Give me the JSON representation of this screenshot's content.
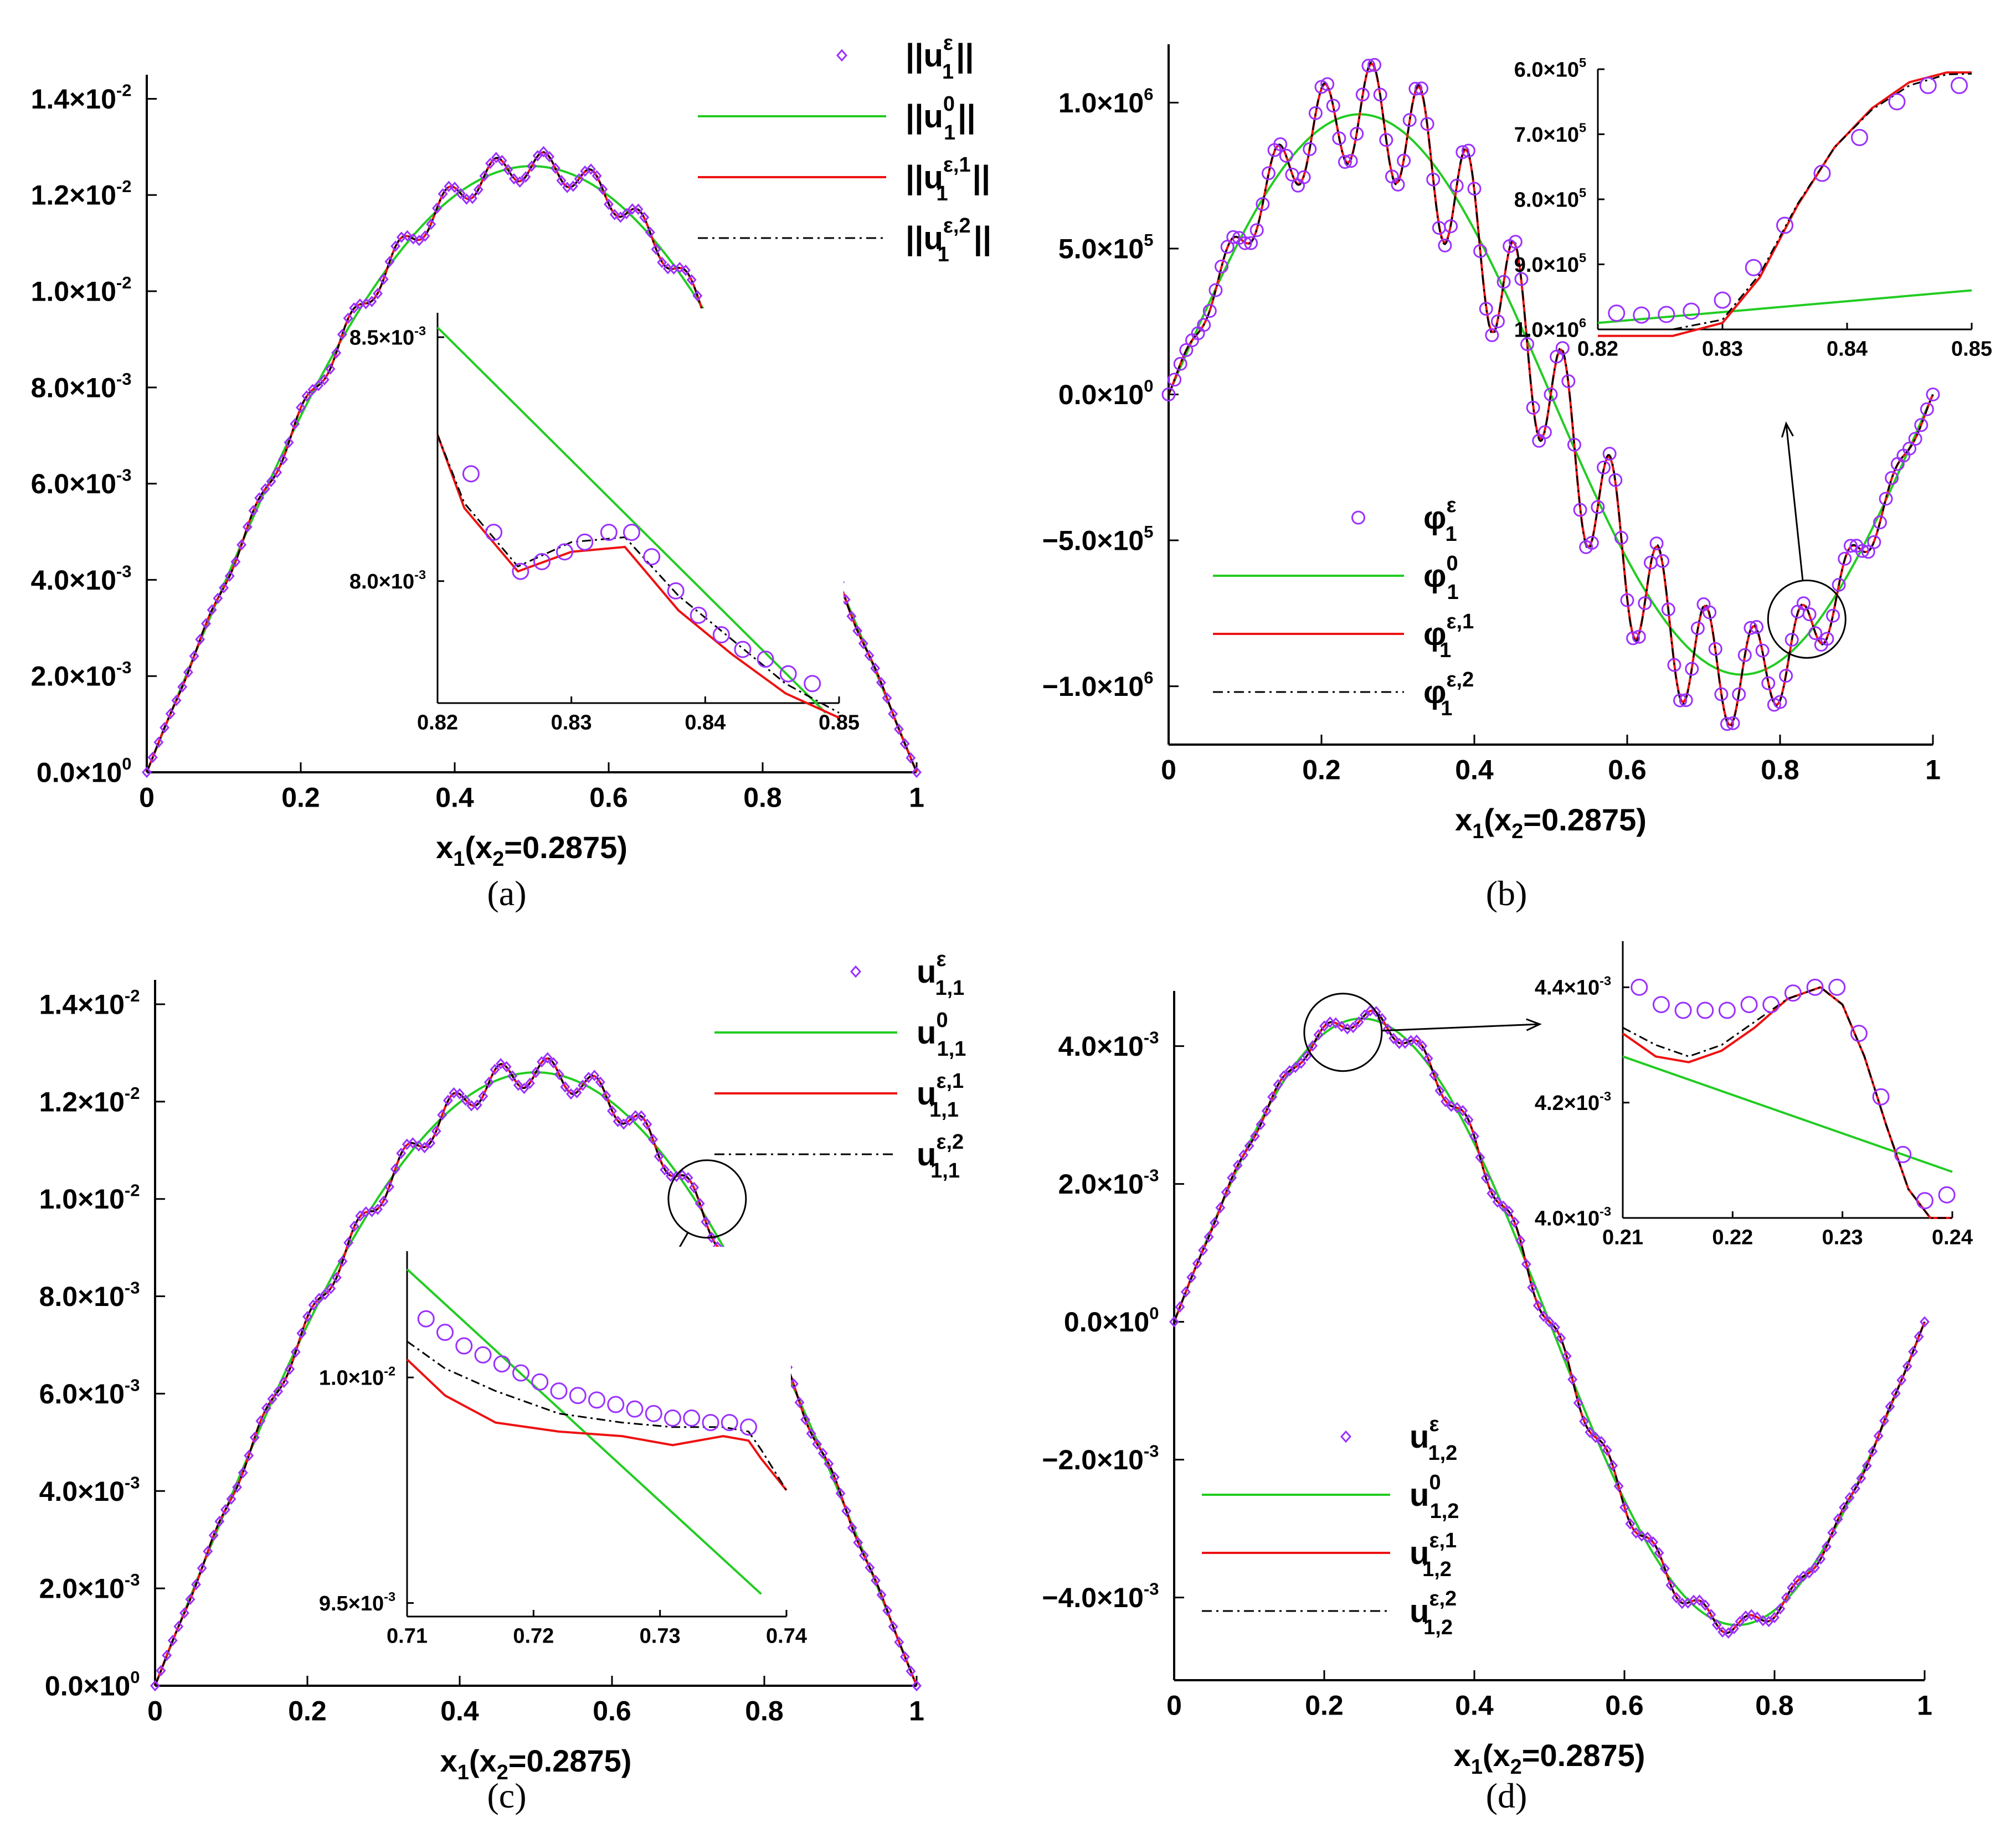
{
  "figure": {
    "captions": [
      "(a)",
      "(b)",
      "(c)",
      "(d)"
    ]
  },
  "colors": {
    "series_eps": "#9b30ff",
    "series_0": "#22cc22",
    "series_1": "#ee1111",
    "series_2": "#000000",
    "axis": "#000000"
  },
  "chart_data": [
    {
      "id": "a",
      "type": "line",
      "caption": "(a)",
      "xlabel": "x1(x2=0.2875)",
      "xlim": [
        0,
        1
      ],
      "ylim": [
        0,
        0.0145
      ],
      "xticks": [
        0,
        0.2,
        0.4,
        0.6,
        0.8,
        1
      ],
      "xtick_labels": [
        "0",
        "0.2",
        "0.4",
        "0.6",
        "0.8",
        "1"
      ],
      "yticks": [
        0,
        0.002,
        0.004,
        0.006,
        0.008,
        0.01,
        0.012,
        0.014
      ],
      "ytick_labels": [
        {
          "m": "0.0×10",
          "e": "0"
        },
        {
          "m": "2.0×10",
          "e": "-3"
        },
        {
          "m": "4.0×10",
          "e": "-3"
        },
        {
          "m": "6.0×10",
          "e": "-3"
        },
        {
          "m": "8.0×10",
          "e": "-3"
        },
        {
          "m": "1.0×10",
          "e": "-2"
        },
        {
          "m": "1.2×10",
          "e": "-2"
        },
        {
          "m": "1.4×10",
          "e": "-2"
        }
      ],
      "legend": [
        {
          "series": "eps",
          "base": "||u",
          "sub": "1",
          "sup": "ε",
          "tail": "||"
        },
        {
          "series": "zero",
          "base": "||u",
          "sub": "1",
          "sup": "0",
          "tail": "||"
        },
        {
          "series": "first",
          "base": "||u",
          "sub": "1",
          "sup": "ε,1",
          "tail": "||"
        },
        {
          "series": "second",
          "base": "||u",
          "sub": "1",
          "sup": "ε,2",
          "tail": "||"
        }
      ],
      "legend_position": "top-right",
      "model": {
        "kind": "sine",
        "amp": 0.0126,
        "osc_amp": 0.0003,
        "osc_freq": 16
      },
      "zoom_marker": {
        "x": 0.835,
        "y": 0.0083
      },
      "inset": {
        "xlim": [
          0.82,
          0.85
        ],
        "ylim": [
          0.00775,
          0.00855
        ],
        "xticks": [
          0.82,
          0.83,
          0.84,
          0.85
        ],
        "xtick_labels": [
          "0.82",
          "0.83",
          "0.84",
          "0.85"
        ],
        "yticks": [
          0.008,
          0.0085
        ],
        "ytick_labels": [
          {
            "m": "8.0×10",
            "e": "-3"
          },
          {
            "m": "8.5×10",
            "e": "-3"
          }
        ],
        "zero": {
          "x": [
            0.82,
            0.849
          ],
          "y": [
            0.00852,
            0.00773
          ]
        },
        "first": {
          "x": [
            0.82,
            0.822,
            0.826,
            0.83,
            0.834,
            0.838,
            0.842,
            0.846,
            0.85
          ],
          "y": [
            0.0083,
            0.00815,
            0.00802,
            0.00806,
            0.00807,
            0.00794,
            0.00785,
            0.00777,
            0.00772
          ]
        },
        "second": {
          "x": [
            0.82,
            0.822,
            0.826,
            0.83,
            0.834,
            0.838,
            0.842,
            0.846,
            0.85
          ],
          "y": [
            0.0083,
            0.00816,
            0.00803,
            0.00808,
            0.00809,
            0.00797,
            0.00788,
            0.00779,
            0.00773
          ]
        },
        "eps": {
          "x": [
            0.8225,
            0.8242,
            0.8262,
            0.8278,
            0.8295,
            0.831,
            0.8328,
            0.8345,
            0.836,
            0.8378,
            0.8395,
            0.8412,
            0.8428,
            0.8445,
            0.8462,
            0.848
          ],
          "y": [
            0.00822,
            0.0081,
            0.00802,
            0.00804,
            0.00806,
            0.00808,
            0.0081,
            0.0081,
            0.00805,
            0.00798,
            0.00793,
            0.00789,
            0.00786,
            0.00784,
            0.00781,
            0.00779
          ]
        }
      }
    },
    {
      "id": "b",
      "type": "line",
      "caption": "(b)",
      "xlabel": "x1(x2=0.2875)",
      "xlim": [
        0,
        1
      ],
      "ylim": [
        -1200000,
        1200000
      ],
      "xticks": [
        0,
        0.2,
        0.4,
        0.6,
        0.8,
        1
      ],
      "xtick_labels": [
        "0",
        "0.2",
        "0.4",
        "0.6",
        "0.8",
        "1"
      ],
      "yticks": [
        -1000000,
        -500000,
        0,
        500000,
        1000000
      ],
      "ytick_labels": [
        {
          "m": "−1.0×10",
          "e": "6"
        },
        {
          "m": "−5.0×10",
          "e": "5"
        },
        {
          "m": "0.0×10",
          "e": "0"
        },
        {
          "m": "5.0×10",
          "e": "5"
        },
        {
          "m": "1.0×10",
          "e": "6"
        }
      ],
      "legend": [
        {
          "series": "eps",
          "base": "φ",
          "sub": "1",
          "sup": "ε",
          "tail": ""
        },
        {
          "series": "zero",
          "base": "φ",
          "sub": "1",
          "sup": "0",
          "tail": ""
        },
        {
          "series": "first",
          "base": "φ",
          "sub": "1",
          "sup": "ε,1",
          "tail": ""
        },
        {
          "series": "second",
          "base": "φ",
          "sub": "1",
          "sup": "ε,2",
          "tail": ""
        }
      ],
      "legend_position": "bottom-left",
      "model": {
        "kind": "fullsine",
        "amp": 960000,
        "osc_amp": 200000,
        "osc_freq": 16
      },
      "zoom_marker": {
        "x": 0.835,
        "y": -770000
      },
      "inset": {
        "xlim": [
          0.82,
          0.85
        ],
        "ylim": [
          -1000000,
          -600000
        ],
        "xticks": [
          0.82,
          0.83,
          0.84,
          0.85
        ],
        "xtick_labels": [
          "0.82",
          "0.83",
          "0.84",
          "0.85"
        ],
        "yticks": [
          -1000000,
          -900000,
          -800000,
          -700000,
          -600000
        ],
        "ytick_labels": [
          {
            "m": "1.0×10",
            "e": "6"
          },
          {
            "m": "9.0×10",
            "e": "5"
          },
          {
            "m": "8.0×10",
            "e": "5"
          },
          {
            "m": "7.0×10",
            "e": "5"
          },
          {
            "m": "6.0×10",
            "e": "5"
          }
        ],
        "zero": {
          "x": [
            0.82,
            0.85
          ],
          "y": [
            -990000,
            -940000
          ]
        },
        "first": {
          "x": [
            0.82,
            0.826,
            0.83,
            0.833,
            0.836,
            0.839,
            0.842,
            0.845,
            0.848,
            0.85
          ],
          "y": [
            -1010000,
            -1010000,
            -990000,
            -920000,
            -810000,
            -720000,
            -660000,
            -620000,
            -605000,
            -605000
          ]
        },
        "second": {
          "x": [
            0.82,
            0.826,
            0.83,
            0.833,
            0.836,
            0.839,
            0.842,
            0.845,
            0.848,
            0.85
          ],
          "y": [
            -1000000,
            -1000000,
            -985000,
            -915000,
            -808000,
            -720000,
            -662000,
            -625000,
            -608000,
            -607000
          ]
        },
        "eps": {
          "x": [
            0.8215,
            0.8235,
            0.8255,
            0.8275,
            0.83,
            0.8325,
            0.835,
            0.838,
            0.841,
            0.844,
            0.8465,
            0.849
          ],
          "y": [
            -975000,
            -978000,
            -977000,
            -972000,
            -955000,
            -905000,
            -840000,
            -760000,
            -705000,
            -650000,
            -625000,
            -625000
          ]
        }
      }
    },
    {
      "id": "c",
      "type": "line",
      "caption": "(c)",
      "xlabel": "x1(x2=0.2875)",
      "xlim": [
        0,
        1
      ],
      "ylim": [
        0,
        0.0145
      ],
      "xticks": [
        0,
        0.2,
        0.4,
        0.6,
        0.8,
        1
      ],
      "xtick_labels": [
        "0",
        "0.2",
        "0.4",
        "0.6",
        "0.8",
        "1"
      ],
      "yticks": [
        0,
        0.002,
        0.004,
        0.006,
        0.008,
        0.01,
        0.012,
        0.014
      ],
      "ytick_labels": [
        {
          "m": "0.0×10",
          "e": "0"
        },
        {
          "m": "2.0×10",
          "e": "-3"
        },
        {
          "m": "4.0×10",
          "e": "-3"
        },
        {
          "m": "6.0×10",
          "e": "-3"
        },
        {
          "m": "8.0×10",
          "e": "-3"
        },
        {
          "m": "1.0×10",
          "e": "-2"
        },
        {
          "m": "1.2×10",
          "e": "-2"
        },
        {
          "m": "1.4×10",
          "e": "-2"
        }
      ],
      "legend": [
        {
          "series": "eps",
          "base": "u",
          "sub": "1,1",
          "sup": "ε",
          "tail": ""
        },
        {
          "series": "zero",
          "base": "u",
          "sub": "1,1",
          "sup": "0",
          "tail": ""
        },
        {
          "series": "first",
          "base": "u",
          "sub": "1,1",
          "sup": "ε,1",
          "tail": ""
        },
        {
          "series": "second",
          "base": "u",
          "sub": "1,1",
          "sup": "ε,2",
          "tail": ""
        }
      ],
      "legend_position": "top-right",
      "model": {
        "kind": "sine",
        "amp": 0.0126,
        "osc_amp": 0.0003,
        "osc_freq": 16
      },
      "zoom_marker": {
        "x": 0.725,
        "y": 0.01
      },
      "inset": {
        "xlim": [
          0.71,
          0.74
        ],
        "ylim": [
          0.00947,
          0.01028
        ],
        "xticks": [
          0.71,
          0.72,
          0.73,
          0.74
        ],
        "xtick_labels": [
          "0.71",
          "0.72",
          "0.73",
          "0.74"
        ],
        "yticks": [
          0.0095,
          0.01
        ],
        "ytick_labels": [
          {
            "m": "9.5×10",
            "e": "-3"
          },
          {
            "m": "1.0×10",
            "e": "-2"
          }
        ],
        "zero": {
          "x": [
            0.71,
            0.738
          ],
          "y": [
            0.01024,
            0.00952
          ]
        },
        "first": {
          "x": [
            0.71,
            0.713,
            0.717,
            0.722,
            0.727,
            0.731,
            0.735,
            0.737,
            0.738,
            0.74
          ],
          "y": [
            0.01004,
            0.00996,
            0.0099,
            0.00988,
            0.00987,
            0.00985,
            0.00987,
            0.00986,
            0.00982,
            0.00975
          ]
        },
        "second": {
          "x": [
            0.71,
            0.713,
            0.717,
            0.722,
            0.727,
            0.731,
            0.735,
            0.737,
            0.738,
            0.74
          ],
          "y": [
            0.01008,
            0.01002,
            0.00997,
            0.00992,
            0.0099,
            0.00989,
            0.00989,
            0.00988,
            0.00984,
            0.00975
          ]
        },
        "eps": {
          "x": [
            0.7115,
            0.713,
            0.7145,
            0.716,
            0.7175,
            0.719,
            0.7205,
            0.722,
            0.7235,
            0.725,
            0.7265,
            0.728,
            0.7295,
            0.731,
            0.7325,
            0.734,
            0.7355,
            0.737
          ],
          "y": [
            0.01013,
            0.0101,
            0.01007,
            0.01005,
            0.01003,
            0.01001,
            0.00999,
            0.00997,
            0.00996,
            0.00995,
            0.00994,
            0.00993,
            0.00992,
            0.00991,
            0.00991,
            0.0099,
            0.0099,
            0.00989
          ]
        }
      }
    },
    {
      "id": "d",
      "type": "line",
      "caption": "(d)",
      "xlabel": "x1(x2=0.2875)",
      "xlim": [
        0,
        1
      ],
      "ylim": [
        -0.0052,
        0.0048
      ],
      "xticks": [
        0,
        0.2,
        0.4,
        0.6,
        0.8,
        1
      ],
      "xtick_labels": [
        "0",
        "0.2",
        "0.4",
        "0.6",
        "0.8",
        "1"
      ],
      "yticks": [
        -0.004,
        -0.002,
        0,
        0.002,
        0.004
      ],
      "ytick_labels": [
        {
          "m": "−4.0×10",
          "e": "-3"
        },
        {
          "m": "−2.0×10",
          "e": "-3"
        },
        {
          "m": "0.0×10",
          "e": "0"
        },
        {
          "m": "2.0×10",
          "e": "-3"
        },
        {
          "m": "4.0×10",
          "e": "-3"
        }
      ],
      "legend": [
        {
          "series": "eps",
          "base": "u",
          "sub": "1,2",
          "sup": "ε",
          "tail": ""
        },
        {
          "series": "zero",
          "base": "u",
          "sub": "1,2",
          "sup": "0",
          "tail": ""
        },
        {
          "series": "first",
          "base": "u",
          "sub": "1,2",
          "sup": "ε,1",
          "tail": ""
        },
        {
          "series": "second",
          "base": "u",
          "sub": "1,2",
          "sup": "ε,2",
          "tail": ""
        }
      ],
      "legend_position": "bottom-left",
      "model": {
        "kind": "fullsine",
        "amp": 0.0044,
        "osc_amp": 0.00015,
        "osc_freq": 16
      },
      "zoom_marker": {
        "x": 0.225,
        "y": 0.0042
      },
      "inset": {
        "xlim": [
          0.21,
          0.24
        ],
        "ylim": [
          0.004,
          0.00448
        ],
        "xticks": [
          0.21,
          0.22,
          0.23,
          0.24
        ],
        "xtick_labels": [
          "0.21",
          "0.22",
          "0.23",
          "0.24"
        ],
        "yticks": [
          0.004,
          0.0042,
          0.0044
        ],
        "ytick_labels": [
          {
            "m": "4.0×10",
            "e": "-3"
          },
          {
            "m": "4.2×10",
            "e": "-3"
          },
          {
            "m": "4.4×10",
            "e": "-3"
          }
        ],
        "zero": {
          "x": [
            0.21,
            0.24
          ],
          "y": [
            0.00428,
            0.00408
          ]
        },
        "first": {
          "x": [
            0.21,
            0.213,
            0.216,
            0.219,
            0.222,
            0.225,
            0.228,
            0.23,
            0.232,
            0.234,
            0.236,
            0.238,
            0.24
          ],
          "y": [
            0.00432,
            0.00428,
            0.00427,
            0.00429,
            0.00433,
            0.00438,
            0.0044,
            0.00437,
            0.00428,
            0.00416,
            0.00405,
            0.004,
            0.004
          ]
        },
        "second": {
          "x": [
            0.21,
            0.213,
            0.216,
            0.219,
            0.222,
            0.225,
            0.228,
            0.23,
            0.232,
            0.234,
            0.236,
            0.238,
            0.24
          ],
          "y": [
            0.00433,
            0.0043,
            0.00428,
            0.0043,
            0.00434,
            0.00438,
            0.0044,
            0.00437,
            0.00428,
            0.00416,
            0.00405,
            0.004,
            0.004
          ]
        },
        "eps": {
          "x": [
            0.2115,
            0.2135,
            0.2155,
            0.2175,
            0.2195,
            0.2215,
            0.2235,
            0.2255,
            0.2275,
            0.2295,
            0.2315,
            0.2335,
            0.2355,
            0.2375,
            0.2395
          ],
          "y": [
            0.0044,
            0.00437,
            0.00436,
            0.00436,
            0.00436,
            0.00437,
            0.00437,
            0.00439,
            0.0044,
            0.0044,
            0.00432,
            0.00421,
            0.00411,
            0.00403,
            0.00404
          ]
        }
      }
    }
  ]
}
